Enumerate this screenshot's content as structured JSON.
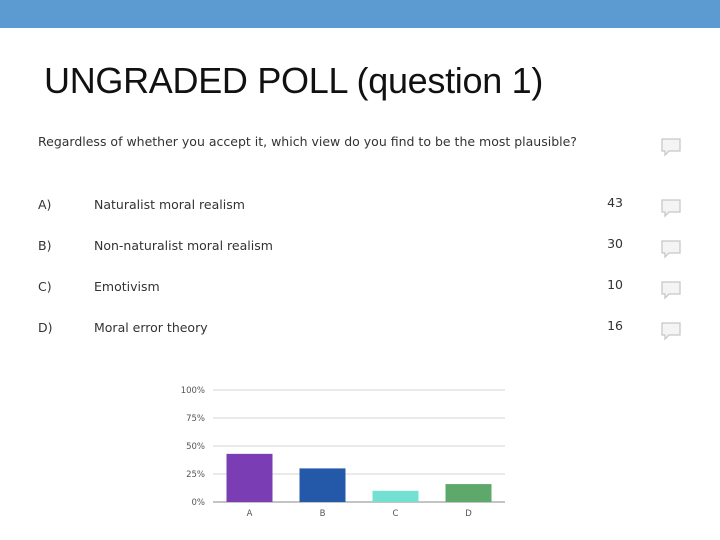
{
  "slide": {
    "title": "UNGRADED POLL (question 1)"
  },
  "poll": {
    "question": "Regardless of whether you accept it, which view do you find to be the most plausible?",
    "options": [
      {
        "letter": "A)",
        "text": "Naturalist moral realism",
        "count": "43"
      },
      {
        "letter": "B)",
        "text": "Non-naturalist moral realism",
        "count": "30"
      },
      {
        "letter": "C)",
        "text": "Emotivism",
        "count": "10"
      },
      {
        "letter": "D)",
        "text": "Moral error theory",
        "count": "16"
      }
    ],
    "icons": [
      "comment-icon",
      "comment-icon",
      "comment-icon",
      "comment-icon",
      "comment-icon"
    ]
  },
  "chart_data": {
    "type": "bar",
    "categories": [
      "A",
      "B",
      "C",
      "D"
    ],
    "values": [
      43,
      30,
      10,
      16
    ],
    "ytick_labels": [
      "0%",
      "25%",
      "50%",
      "75%",
      "100%"
    ],
    "ylim": [
      0,
      100
    ],
    "grid": true,
    "colors": [
      "#7b3db4",
      "#2458a8",
      "#74e0d2",
      "#5da86a"
    ]
  }
}
